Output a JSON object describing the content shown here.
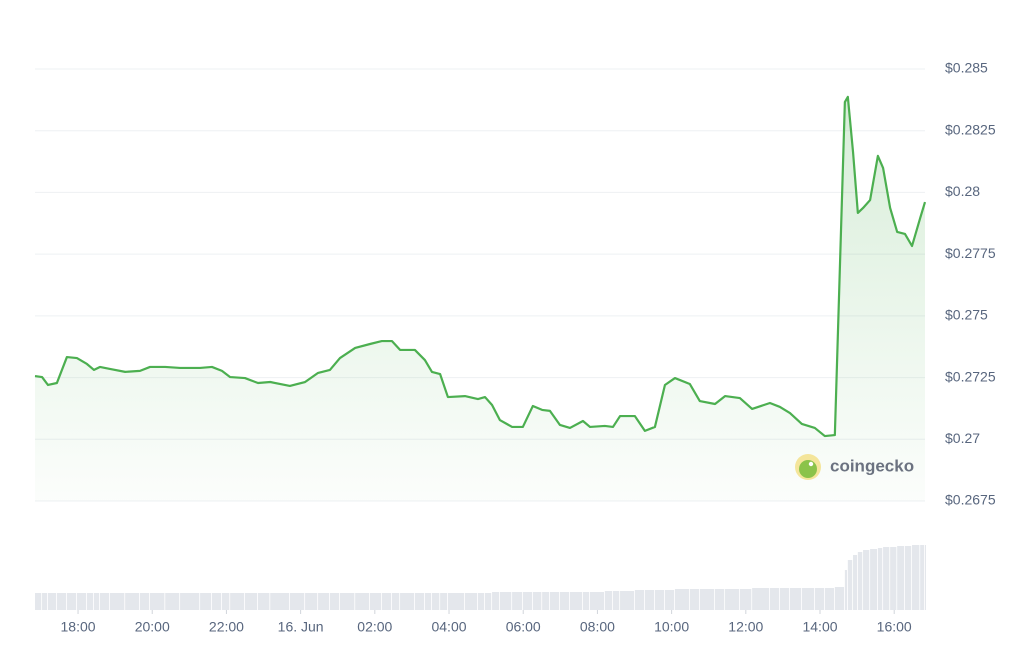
{
  "chart_data": {
    "type": "line",
    "watermark": "coingecko",
    "color": "#4caf50",
    "volume_color": "#e4e7ec",
    "grid": true,
    "xlim": [
      16.84,
      40.83
    ],
    "xticks": [
      {
        "value": 18,
        "label": "18:00"
      },
      {
        "value": 20,
        "label": "20:00"
      },
      {
        "value": 22,
        "label": "22:00"
      },
      {
        "value": 24,
        "label": "16. Jun"
      },
      {
        "value": 26,
        "label": "02:00"
      },
      {
        "value": 28,
        "label": "04:00"
      },
      {
        "value": 30,
        "label": "06:00"
      },
      {
        "value": 32,
        "label": "08:00"
      },
      {
        "value": 34,
        "label": "10:00"
      },
      {
        "value": 36,
        "label": "12:00"
      },
      {
        "value": 38,
        "label": "14:00"
      },
      {
        "value": 40,
        "label": "16:00"
      }
    ],
    "ylim": [
      0.2675,
      0.285
    ],
    "yticks": [
      {
        "value": 0.285,
        "label": "$0.285"
      },
      {
        "value": 0.2825,
        "label": "$0.2825"
      },
      {
        "value": 0.28,
        "label": "$0.28"
      },
      {
        "value": 0.2775,
        "label": "$0.2775"
      },
      {
        "value": 0.275,
        "label": "$0.275"
      },
      {
        "value": 0.2725,
        "label": "$0.2725"
      },
      {
        "value": 0.27,
        "label": "$0.27"
      },
      {
        "value": 0.2675,
        "label": "$0.2675"
      }
    ],
    "x": [
      16.84,
      17.03,
      17.19,
      17.43,
      17.7,
      17.97,
      18.24,
      18.43,
      18.59,
      18.86,
      19.27,
      19.67,
      19.94,
      20.35,
      20.75,
      21.29,
      21.61,
      21.88,
      22.1,
      22.5,
      22.85,
      23.18,
      23.71,
      24.12,
      24.47,
      24.79,
      25.06,
      25.47,
      25.87,
      26.19,
      26.46,
      26.68,
      27.08,
      27.35,
      27.54,
      27.76,
      27.97,
      28.43,
      28.78,
      28.97,
      29.16,
      29.37,
      29.7,
      29.99,
      30.26,
      30.51,
      30.72,
      30.99,
      31.26,
      31.61,
      31.8,
      32.2,
      32.42,
      32.61,
      33.01,
      33.28,
      33.55,
      33.82,
      34.09,
      34.49,
      34.76,
      35.17,
      35.44,
      35.84,
      36.17,
      36.65,
      36.92,
      37.19,
      37.51,
      37.86,
      38.13,
      38.4,
      38.67,
      38.75,
      38.89,
      39.02,
      39.16,
      39.35,
      39.56,
      39.7,
      39.89,
      40.08,
      40.29,
      40.48,
      40.7,
      40.83
    ],
    "values": [
      0.27256,
      0.27252,
      0.2722,
      0.27228,
      0.27333,
      0.27329,
      0.27305,
      0.27281,
      0.27293,
      0.27285,
      0.27273,
      0.27277,
      0.27293,
      0.27293,
      0.27289,
      0.27289,
      0.27293,
      0.27277,
      0.27252,
      0.27248,
      0.27228,
      0.27232,
      0.27216,
      0.27232,
      0.27269,
      0.27281,
      0.27329,
      0.2737,
      0.27386,
      0.27398,
      0.27398,
      0.27362,
      0.27362,
      0.27321,
      0.27273,
      0.27264,
      0.27171,
      0.27175,
      0.27163,
      0.27171,
      0.27139,
      0.27078,
      0.2705,
      0.2705,
      0.27135,
      0.27119,
      0.27115,
      0.27058,
      0.27046,
      0.27074,
      0.2705,
      0.27054,
      0.2705,
      0.27094,
      0.27094,
      0.27034,
      0.2705,
      0.2722,
      0.27248,
      0.27224,
      0.27155,
      0.27143,
      0.27175,
      0.27167,
      0.27123,
      0.27147,
      0.27131,
      0.27106,
      0.27062,
      0.27046,
      0.27013,
      0.27017,
      0.28366,
      0.28387,
      0.28164,
      0.27917,
      0.27937,
      0.27969,
      0.28148,
      0.28099,
      0.27937,
      0.2784,
      0.27832,
      0.27783,
      0.27896,
      0.27961
    ],
    "volume": [
      17,
      17,
      17,
      17,
      17,
      17,
      17,
      17,
      17,
      17,
      17,
      17,
      17,
      17,
      17,
      17,
      17,
      17,
      17,
      17,
      17,
      17,
      17,
      17,
      17,
      17,
      17,
      17,
      17,
      17,
      17,
      17,
      17,
      17,
      17,
      17,
      17,
      17,
      17,
      17,
      18,
      18,
      18,
      18,
      18,
      18,
      18,
      18,
      18,
      18,
      18,
      19,
      19,
      19,
      20,
      20,
      20,
      20,
      21,
      21,
      21,
      21,
      21,
      21,
      22,
      22,
      22,
      22,
      22,
      22,
      22,
      23,
      40,
      50,
      55,
      58,
      60,
      61,
      62,
      63,
      63,
      64,
      64,
      65,
      65,
      65
    ]
  }
}
